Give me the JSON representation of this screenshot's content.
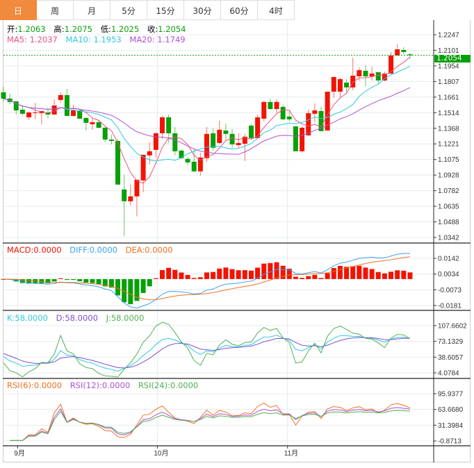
{
  "tabs": [
    {
      "label": "日",
      "active": true
    },
    {
      "label": "周"
    },
    {
      "label": "月"
    },
    {
      "label": "5分"
    },
    {
      "label": "15分"
    },
    {
      "label": "30分"
    },
    {
      "label": "60分"
    },
    {
      "label": "4时"
    }
  ],
  "ohlc": {
    "open_label": "开:",
    "open": "1.2063",
    "high_label": "高:",
    "high": "1.2075",
    "low_label": "低:",
    "low": "1.2025",
    "close_label": "收:",
    "close": "1.2054"
  },
  "ma": {
    "ma5": "MA5: 1.2037",
    "ma10": "MA10: 1.1953",
    "ma20": "MA20: 1.1749"
  },
  "macd_legend": {
    "macd": "MACD:0.0000",
    "diff": "DIFF:0.0000",
    "dea": "DEA:0.0000"
  },
  "kdj_legend": {
    "k": "K:58.0000",
    "d": "D:58.0000",
    "j": "J:58.0000"
  },
  "rsi_legend": {
    "rsi6": "RSI(6):0.0000",
    "rsi12": "RSI(12):0.0000",
    "rsi24": "RSI(24):0.0000"
  },
  "last_price": "1.2054",
  "colors": {
    "up": "#f01405",
    "down": "#08a008",
    "ma5": "#f0507a",
    "ma10": "#30c8e0",
    "ma20": "#b050d0",
    "accent": "#f08a3c",
    "diff": "#3aa0f0",
    "dea": "#f07020",
    "k": "#30c8e0",
    "d": "#8050d0",
    "j": "#50b050",
    "rsi6": "#f07020",
    "rsi12": "#b050d0",
    "rsi24": "#50b050"
  },
  "chart_data": {
    "type": "candlestick",
    "price_axis": [
      "1.2247",
      "1.2101",
      "1.1954",
      "1.1807",
      "1.1661",
      "1.1514",
      "1.1368",
      "1.1221",
      "1.1075",
      "1.0928",
      "1.0782",
      "1.0635",
      "1.0488",
      "1.0342"
    ],
    "price_range": [
      1.0342,
      1.2247
    ],
    "macd_axis": [
      "0.0142",
      "0.0034",
      "-0.0073",
      "-0.0181"
    ],
    "macd_range": [
      -0.0181,
      0.0142
    ],
    "kdj_axis": [
      "107.6602",
      "73.1329",
      "38.6057",
      "4.0784"
    ],
    "kdj_range": [
      4.0784,
      107.6602
    ],
    "rsi_axis": [
      "95.9377",
      "63.6680",
      "31.3984",
      "-0.8713"
    ],
    "rsi_range": [
      -0.8713,
      95.9377
    ],
    "x_labels": [
      {
        "label": "9月",
        "index": 2
      },
      {
        "label": "10月",
        "index": 24
      },
      {
        "label": "11月",
        "index": 44.5
      }
    ],
    "candles_ochl_note": "[open, close, high, low]",
    "candles": [
      [
        1.1706,
        1.1647,
        1.1758,
        1.1621
      ],
      [
        1.1647,
        1.1615,
        1.1693,
        1.1595
      ],
      [
        1.1621,
        1.1536,
        1.1621,
        1.1497
      ],
      [
        1.1543,
        1.1504,
        1.1588,
        1.1491
      ],
      [
        1.1471,
        1.1517,
        1.1523,
        1.1445
      ],
      [
        1.151,
        1.1517,
        1.1608,
        1.1452
      ],
      [
        1.151,
        1.153,
        1.153,
        1.1406
      ],
      [
        1.1517,
        1.1497,
        1.1562,
        1.1458
      ],
      [
        1.1497,
        1.1582,
        1.1641,
        1.1497
      ],
      [
        1.1634,
        1.168,
        1.1706,
        1.1608
      ],
      [
        1.168,
        1.1484,
        1.1738,
        1.1484
      ],
      [
        1.1484,
        1.1536,
        1.1588,
        1.1478
      ],
      [
        1.1536,
        1.1458,
        1.1543,
        1.1458
      ],
      [
        1.1465,
        1.1419,
        1.1471,
        1.1347
      ],
      [
        1.1406,
        1.1425,
        1.1465,
        1.1354
      ],
      [
        1.1425,
        1.1373,
        1.1445,
        1.1367
      ],
      [
        1.1373,
        1.1262,
        1.138,
        1.1236
      ],
      [
        1.1262,
        1.1249,
        1.1308,
        1.1217
      ],
      [
        1.1249,
        1.0839,
        1.1269,
        1.0839
      ],
      [
        1.0793,
        1.0682,
        1.093,
        1.0356
      ],
      [
        1.0682,
        1.0728,
        1.0839,
        1.0643
      ],
      [
        1.0728,
        1.0884,
        1.0884,
        1.0539
      ],
      [
        1.0878,
        1.1119,
        1.1119,
        1.0767
      ],
      [
        1.1113,
        1.1152,
        1.1236,
        1.1028
      ],
      [
        1.1165,
        1.1321,
        1.1334,
        1.1093
      ],
      [
        1.1321,
        1.1471,
        1.1484,
        1.1269
      ],
      [
        1.1471,
        1.1321,
        1.1497,
        1.123
      ],
      [
        1.1321,
        1.1152,
        1.138,
        1.1113
      ],
      [
        1.1158,
        1.1087,
        1.1171,
        1.108
      ],
      [
        1.108,
        1.1047,
        1.11,
        1.1021
      ],
      [
        1.1054,
        1.0963,
        1.1178,
        1.0956
      ],
      [
        1.0963,
        1.1093,
        1.1139,
        1.0923
      ],
      [
        1.1087,
        1.1315,
        1.138,
        1.1054
      ],
      [
        1.1321,
        1.1184,
        1.1367,
        1.1158
      ],
      [
        1.123,
        1.1354,
        1.1438,
        1.1217
      ],
      [
        1.1347,
        1.1315,
        1.1412,
        1.1249
      ],
      [
        1.1315,
        1.1217,
        1.136,
        1.1184
      ],
      [
        1.121,
        1.123,
        1.1321,
        1.1184
      ],
      [
        1.1223,
        1.1289,
        1.1315,
        1.106
      ],
      [
        1.1393,
        1.1276,
        1.1406,
        1.1262
      ],
      [
        1.1276,
        1.1471,
        1.1497,
        1.1269
      ],
      [
        1.1458,
        1.1615,
        1.1628,
        1.1432
      ],
      [
        1.1615,
        1.1549,
        1.1647,
        1.1543
      ],
      [
        1.1549,
        1.1615,
        1.1641,
        1.1517
      ],
      [
        1.1569,
        1.1452,
        1.1588,
        1.1445
      ],
      [
        1.1478,
        1.1452,
        1.153,
        1.1432
      ],
      [
        1.1386,
        1.1152,
        1.1386,
        1.1152
      ],
      [
        1.1152,
        1.1373,
        1.1386,
        1.1139
      ],
      [
        1.1302,
        1.151,
        1.1543,
        1.1295
      ],
      [
        1.1504,
        1.1536,
        1.1602,
        1.1425
      ],
      [
        1.153,
        1.1341,
        1.1569,
        1.1341
      ],
      [
        1.1347,
        1.1712,
        1.1712,
        1.1347
      ],
      [
        1.1712,
        1.1849,
        1.1856,
        1.1654
      ],
      [
        1.1712,
        1.183,
        1.1843,
        1.1654
      ],
      [
        1.1797,
        1.1752,
        1.183,
        1.1706
      ],
      [
        1.1752,
        1.1862,
        1.2032,
        1.1725
      ],
      [
        1.1856,
        1.1914,
        1.1941,
        1.1817
      ],
      [
        1.1908,
        1.1856,
        1.196,
        1.1765
      ],
      [
        1.1856,
        1.1882,
        1.1947,
        1.1817
      ],
      [
        1.1895,
        1.1817,
        1.1895,
        1.1784
      ],
      [
        1.1817,
        1.1882,
        1.1901,
        1.181
      ],
      [
        1.1882,
        1.2051,
        1.2084,
        1.1875
      ],
      [
        1.2051,
        1.211,
        1.2156,
        1.2051
      ],
      [
        1.2104,
        1.2084,
        1.213,
        1.2064
      ],
      [
        1.2063,
        1.2054,
        1.2075,
        1.2025
      ]
    ]
  }
}
